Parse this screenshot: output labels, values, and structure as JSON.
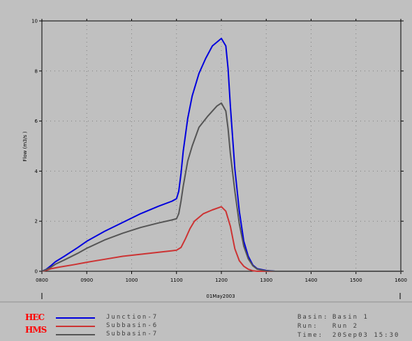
{
  "chart_data": {
    "type": "line",
    "xlabel": "01May2003",
    "ylabel": "Flow (m3/s   )",
    "xlim": [
      800,
      1600
    ],
    "ylim": [
      0,
      10
    ],
    "x_ticks": [
      "0800",
      "0900",
      "1000",
      "1100",
      "1200",
      "1300",
      "1400",
      "1500",
      "1600"
    ],
    "y_ticks": [
      "0",
      "2",
      "4",
      "6",
      "8",
      "10"
    ],
    "grid": true,
    "series": [
      {
        "name": "Junction-7",
        "color": "#0000dd",
        "points": [
          [
            800,
            0
          ],
          [
            810,
            0.08
          ],
          [
            820,
            0.22
          ],
          [
            830,
            0.38
          ],
          [
            850,
            0.6
          ],
          [
            880,
            0.95
          ],
          [
            900,
            1.2
          ],
          [
            940,
            1.6
          ],
          [
            980,
            1.95
          ],
          [
            1020,
            2.3
          ],
          [
            1060,
            2.6
          ],
          [
            1090,
            2.8
          ],
          [
            1100,
            2.9
          ],
          [
            1105,
            3.2
          ],
          [
            1110,
            3.9
          ],
          [
            1115,
            4.8
          ],
          [
            1125,
            6.1
          ],
          [
            1135,
            7.0
          ],
          [
            1150,
            7.9
          ],
          [
            1165,
            8.5
          ],
          [
            1180,
            9.0
          ],
          [
            1200,
            9.3
          ],
          [
            1210,
            9.0
          ],
          [
            1215,
            8.1
          ],
          [
            1220,
            6.6
          ],
          [
            1230,
            4.1
          ],
          [
            1240,
            2.4
          ],
          [
            1250,
            1.2
          ],
          [
            1260,
            0.6
          ],
          [
            1270,
            0.25
          ],
          [
            1280,
            0.1
          ],
          [
            1300,
            0.03
          ],
          [
            1320,
            0
          ],
          [
            1600,
            0
          ]
        ]
      },
      {
        "name": "Subbasin-6",
        "color": "#cc3333",
        "points": [
          [
            800,
            0
          ],
          [
            810,
            0.04
          ],
          [
            820,
            0.1
          ],
          [
            840,
            0.17
          ],
          [
            870,
            0.26
          ],
          [
            900,
            0.36
          ],
          [
            940,
            0.48
          ],
          [
            980,
            0.6
          ],
          [
            1020,
            0.68
          ],
          [
            1060,
            0.76
          ],
          [
            1090,
            0.82
          ],
          [
            1100,
            0.84
          ],
          [
            1110,
            0.95
          ],
          [
            1120,
            1.3
          ],
          [
            1130,
            1.7
          ],
          [
            1140,
            2.0
          ],
          [
            1160,
            2.3
          ],
          [
            1180,
            2.45
          ],
          [
            1200,
            2.58
          ],
          [
            1210,
            2.4
          ],
          [
            1220,
            1.8
          ],
          [
            1230,
            0.9
          ],
          [
            1240,
            0.42
          ],
          [
            1250,
            0.2
          ],
          [
            1260,
            0.08
          ],
          [
            1270,
            0.02
          ],
          [
            1280,
            0
          ],
          [
            1600,
            0
          ]
        ]
      },
      {
        "name": "Subbasin-7",
        "color": "#555555",
        "points": [
          [
            800,
            0
          ],
          [
            810,
            0.07
          ],
          [
            820,
            0.16
          ],
          [
            830,
            0.28
          ],
          [
            850,
            0.45
          ],
          [
            880,
            0.72
          ],
          [
            900,
            0.92
          ],
          [
            940,
            1.25
          ],
          [
            980,
            1.52
          ],
          [
            1020,
            1.75
          ],
          [
            1060,
            1.93
          ],
          [
            1090,
            2.05
          ],
          [
            1100,
            2.1
          ],
          [
            1105,
            2.3
          ],
          [
            1110,
            2.8
          ],
          [
            1115,
            3.4
          ],
          [
            1125,
            4.4
          ],
          [
            1135,
            5.0
          ],
          [
            1150,
            5.75
          ],
          [
            1170,
            6.2
          ],
          [
            1190,
            6.6
          ],
          [
            1200,
            6.72
          ],
          [
            1210,
            6.4
          ],
          [
            1215,
            5.7
          ],
          [
            1220,
            4.7
          ],
          [
            1230,
            3.2
          ],
          [
            1240,
            1.9
          ],
          [
            1250,
            1.0
          ],
          [
            1260,
            0.5
          ],
          [
            1270,
            0.22
          ],
          [
            1280,
            0.08
          ],
          [
            1300,
            0.02
          ],
          [
            1320,
            0
          ],
          [
            1600,
            0
          ]
        ]
      }
    ]
  },
  "logo": {
    "line1": "HEC",
    "line2": "HMS"
  },
  "info": {
    "basin_key": "Basin:",
    "basin_val": "Basin 1",
    "run_key": "Run:",
    "run_val": "Run 2",
    "time_key": "Time:",
    "time_val": "20Sep03   15:30"
  }
}
